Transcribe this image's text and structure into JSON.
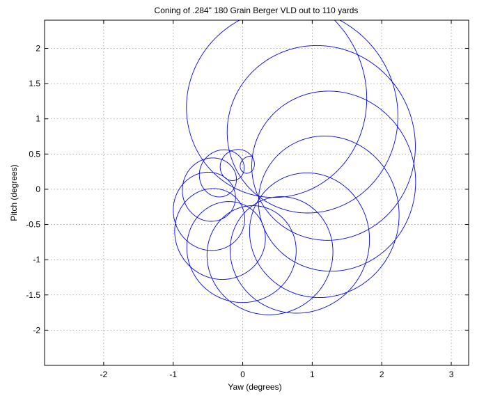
{
  "chart_data": {
    "type": "line",
    "title": "Coning of .284\" 180 Grain Berger VLD out to 110 yards",
    "xlabel": "Yaw (degrees)",
    "ylabel": "Pitch (degrees)",
    "xlim": [
      -2.85,
      3.25
    ],
    "ylim": [
      -2.5,
      2.4
    ],
    "grid": true,
    "x_ticks": [
      -2,
      -1,
      0,
      1,
      2,
      3
    ],
    "y_ticks": [
      2,
      1.5,
      1,
      0.5,
      0,
      -0.5,
      -1,
      -1.5,
      -2
    ],
    "x_tick_labels": [
      "-2",
      "-1",
      "0",
      "1",
      "2",
      "3"
    ],
    "y_tick_labels": [
      "2",
      "1.5",
      "1",
      "0.5",
      "0",
      "-0.5",
      "-1",
      "-1.5",
      "-2"
    ],
    "line_color": "#0000ff",
    "epicycle_model": {
      "center": [
        0.15,
        -0.05
      ],
      "slow_arm_amplitude_start": 0.4,
      "slow_arm_amplitude_end": 1.45,
      "fast_arm_amplitude_start": 0.12,
      "fast_arm_amplitude_end": 1.5,
      "slow_turns": 1,
      "fast_turns": 14,
      "start_phase_deg": 90
    }
  }
}
